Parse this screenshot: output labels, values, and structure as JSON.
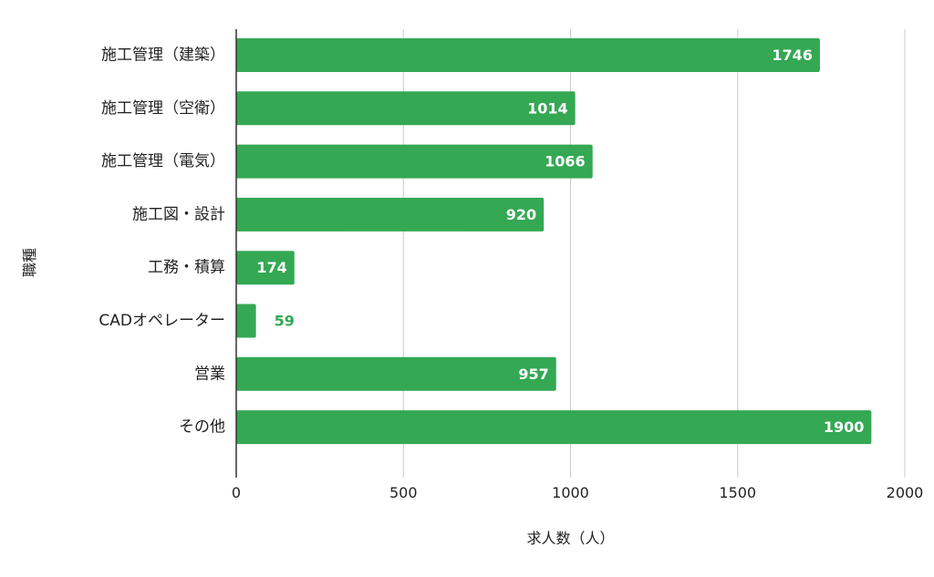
{
  "chart_data": {
    "type": "bar",
    "orientation": "horizontal",
    "categories": [
      "施工管理（建築）",
      "施工管理（空衛）",
      "施工管理（電気）",
      "施工図・設計",
      "工務・積算",
      "CADオペレーター",
      "営業",
      "その他"
    ],
    "values": [
      1746,
      1014,
      1066,
      920,
      174,
      59,
      957,
      1900
    ],
    "xlabel": "求人数（人）",
    "ylabel": "職種",
    "xlim": [
      0,
      2000
    ],
    "xticks": [
      0,
      500,
      1000,
      1500,
      2000
    ],
    "grid": "vertical",
    "data_labels": true,
    "legend": "none",
    "colors": {
      "bar": "#34a853",
      "label_inside": "#ffffff",
      "label_outside": "#34a853",
      "grid": "#cccccc",
      "axis": "#333333"
    }
  }
}
